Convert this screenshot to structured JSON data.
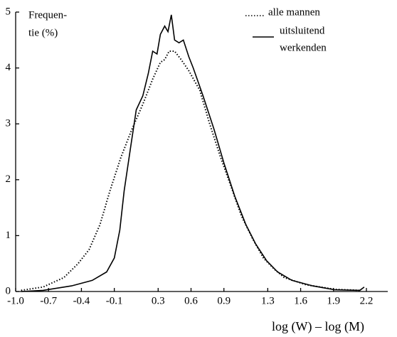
{
  "chart_data": {
    "type": "line",
    "ylabel": [
      "Frequen-",
      "tie (%)"
    ],
    "xlabel": "log (W) – log (M)",
    "xlim": [
      -1.0,
      2.2
    ],
    "xticks": [
      {
        "value": -1.0,
        "label": "-1.0"
      },
      -0.7,
      -0.4,
      -0.1,
      0.3,
      0.6,
      0.9,
      1.3,
      1.6,
      1.9,
      2.2
    ],
    "ylim": [
      0,
      5
    ],
    "yticks": [
      0,
      1,
      2,
      3,
      4,
      5
    ],
    "grid": false,
    "legend": "top-right",
    "series": [
      {
        "name": [
          "alle mannen"
        ],
        "color": "#000000",
        "style": "dotted",
        "x": [
          -0.95,
          -0.75,
          -0.56,
          -0.43,
          -0.33,
          -0.23,
          -0.14,
          -0.04,
          0.06,
          0.16,
          0.25,
          0.32,
          0.36,
          0.4,
          0.45,
          0.51,
          0.58,
          0.68,
          0.77,
          0.87,
          0.97,
          1.06,
          1.16,
          1.26,
          1.36,
          1.45,
          1.65,
          1.91,
          2.14
        ],
        "values": [
          0.02,
          0.08,
          0.25,
          0.5,
          0.75,
          1.2,
          1.8,
          2.4,
          2.9,
          3.35,
          3.8,
          4.1,
          4.15,
          4.3,
          4.3,
          4.15,
          3.95,
          3.6,
          3.0,
          2.4,
          1.85,
          1.35,
          0.95,
          0.6,
          0.4,
          0.25,
          0.12,
          0.04,
          0.02
        ]
      },
      {
        "name": [
          "uitsluitend",
          "werkenden"
        ],
        "color": "#000000",
        "style": "solid",
        "x": [
          -0.95,
          -0.75,
          -0.49,
          -0.3,
          -0.17,
          -0.1,
          -0.05,
          -0.01,
          0.05,
          0.1,
          0.16,
          0.21,
          0.25,
          0.29,
          0.32,
          0.36,
          0.39,
          0.42,
          0.45,
          0.49,
          0.53,
          0.58,
          0.62,
          0.71,
          0.81,
          0.9,
          1.0,
          1.1,
          1.19,
          1.29,
          1.39,
          1.52,
          1.71,
          1.91,
          2.14,
          2.18
        ],
        "values": [
          0.0,
          0.02,
          0.1,
          0.2,
          0.35,
          0.6,
          1.1,
          1.8,
          2.6,
          3.25,
          3.5,
          3.9,
          4.3,
          4.25,
          4.6,
          4.75,
          4.65,
          4.95,
          4.5,
          4.45,
          4.5,
          4.2,
          4.0,
          3.5,
          2.9,
          2.3,
          1.7,
          1.2,
          0.85,
          0.55,
          0.35,
          0.2,
          0.1,
          0.03,
          0.02,
          0.08
        ]
      }
    ]
  }
}
